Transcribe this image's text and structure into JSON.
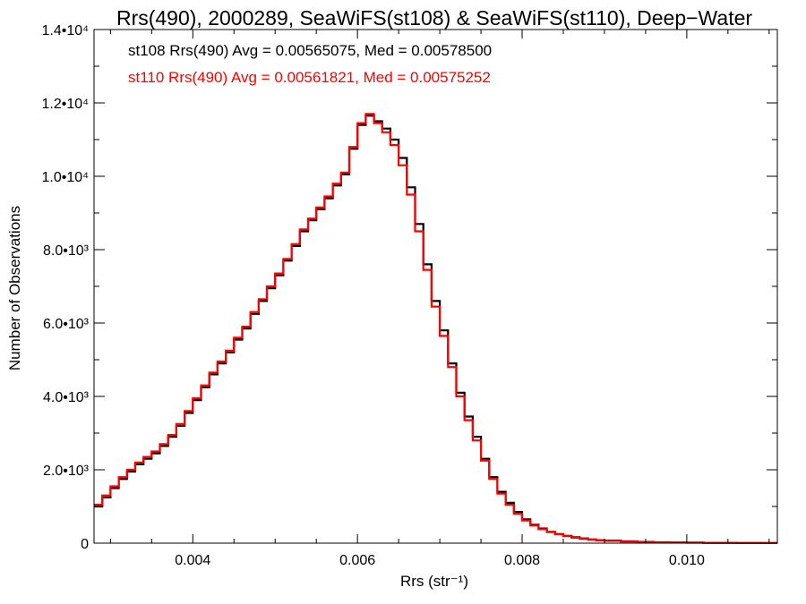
{
  "chart_data": {
    "type": "line",
    "step": true,
    "title": "Rrs(490), 2000289, SeaWiFS(st108) & SeaWiFS(st110), Deep−Water",
    "xlabel": "Rrs (str⁻¹)",
    "ylabel": "Number of Observations",
    "xlim": [
      0.0028,
      0.0111
    ],
    "ylim": [
      0,
      14000
    ],
    "xticks": [
      {
        "value": 0.004,
        "label": "0.004"
      },
      {
        "value": 0.006,
        "label": "0.006"
      },
      {
        "value": 0.008,
        "label": "0.008"
      },
      {
        "value": 0.01,
        "label": "0.010"
      }
    ],
    "yticks": [
      {
        "value": 0,
        "label": "0"
      },
      {
        "value": 2000,
        "label": "2.0•10³"
      },
      {
        "value": 4000,
        "label": "4.0•10³"
      },
      {
        "value": 6000,
        "label": "6.0•10³"
      },
      {
        "value": 8000,
        "label": "8.0•10³"
      },
      {
        "value": 10000,
        "label": "1.0•10⁴"
      },
      {
        "value": 12000,
        "label": "1.2•10⁴"
      },
      {
        "value": 14000,
        "label": "1.4•10⁴"
      }
    ],
    "grid": false,
    "legend_position": "top-left",
    "series": [
      {
        "name": "st108",
        "color": "#000000",
        "legend": "st108 Rrs(490) Avg = 0.00565075, Med = 0.00578500",
        "x": [
          0.0028,
          0.0029,
          0.003,
          0.0031,
          0.0032,
          0.0033,
          0.0034,
          0.0035,
          0.0036,
          0.0037,
          0.0038,
          0.0039,
          0.004,
          0.0041,
          0.0042,
          0.0043,
          0.0044,
          0.0045,
          0.0046,
          0.0047,
          0.0048,
          0.0049,
          0.005,
          0.0051,
          0.0052,
          0.0053,
          0.0054,
          0.0055,
          0.0056,
          0.0057,
          0.0058,
          0.0059,
          0.006,
          0.0061,
          0.0062,
          0.0063,
          0.0064,
          0.0065,
          0.0066,
          0.0067,
          0.0068,
          0.0069,
          0.007,
          0.0071,
          0.0072,
          0.0073,
          0.0074,
          0.0075,
          0.0076,
          0.0077,
          0.0078,
          0.0079,
          0.008,
          0.0081,
          0.0082,
          0.0083,
          0.0084,
          0.0085,
          0.0086,
          0.0087,
          0.0088,
          0.0089,
          0.009,
          0.0092,
          0.0094,
          0.0096,
          0.0098,
          0.01,
          0.0102,
          0.0104,
          0.0106,
          0.0108,
          0.011
        ],
        "values": [
          1000,
          1250,
          1500,
          1750,
          1950,
          2150,
          2300,
          2450,
          2650,
          2900,
          3200,
          3550,
          3900,
          4250,
          4600,
          4900,
          5200,
          5550,
          5850,
          6250,
          6600,
          6950,
          7300,
          7700,
          8100,
          8500,
          8800,
          9100,
          9400,
          9750,
          10050,
          10750,
          11400,
          11650,
          11500,
          11300,
          11000,
          10500,
          9700,
          8700,
          7600,
          6600,
          5800,
          4900,
          4100,
          3450,
          2900,
          2300,
          1800,
          1400,
          1100,
          850,
          650,
          500,
          400,
          310,
          250,
          200,
          160,
          130,
          100,
          80,
          70,
          50,
          35,
          25,
          20,
          15,
          10,
          8,
          6,
          4,
          3
        ]
      },
      {
        "name": "st110",
        "color": "#ff0000",
        "legend": "st110 Rrs(490) Avg = 0.00561821, Med = 0.00575252",
        "x": [
          0.0028,
          0.0029,
          0.003,
          0.0031,
          0.0032,
          0.0033,
          0.0034,
          0.0035,
          0.0036,
          0.0037,
          0.0038,
          0.0039,
          0.004,
          0.0041,
          0.0042,
          0.0043,
          0.0044,
          0.0045,
          0.0046,
          0.0047,
          0.0048,
          0.0049,
          0.005,
          0.0051,
          0.0052,
          0.0053,
          0.0054,
          0.0055,
          0.0056,
          0.0057,
          0.0058,
          0.0059,
          0.006,
          0.0061,
          0.0062,
          0.0063,
          0.0064,
          0.0065,
          0.0066,
          0.0067,
          0.0068,
          0.0069,
          0.007,
          0.0071,
          0.0072,
          0.0073,
          0.0074,
          0.0075,
          0.0076,
          0.0077,
          0.0078,
          0.0079,
          0.008,
          0.0081,
          0.0082,
          0.0083,
          0.0084,
          0.0085,
          0.0086,
          0.0087,
          0.0088,
          0.0089,
          0.009,
          0.0092,
          0.0094,
          0.0096,
          0.0098,
          0.01,
          0.0102,
          0.0104,
          0.0106,
          0.0108,
          0.011
        ],
        "values": [
          1050,
          1300,
          1550,
          1800,
          2000,
          2200,
          2350,
          2500,
          2700,
          2950,
          3250,
          3600,
          3950,
          4300,
          4650,
          4950,
          5250,
          5600,
          5900,
          6300,
          6650,
          7000,
          7350,
          7750,
          8150,
          8550,
          8850,
          9150,
          9450,
          9800,
          10100,
          10800,
          11450,
          11700,
          11450,
          11200,
          10850,
          10300,
          9500,
          8500,
          7450,
          6450,
          5650,
          4800,
          4000,
          3350,
          2800,
          2250,
          1750,
          1350,
          1050,
          800,
          620,
          480,
          380,
          300,
          240,
          190,
          150,
          120,
          95,
          75,
          65,
          45,
          30,
          22,
          18,
          13,
          9,
          7,
          5,
          3,
          2
        ]
      }
    ]
  }
}
